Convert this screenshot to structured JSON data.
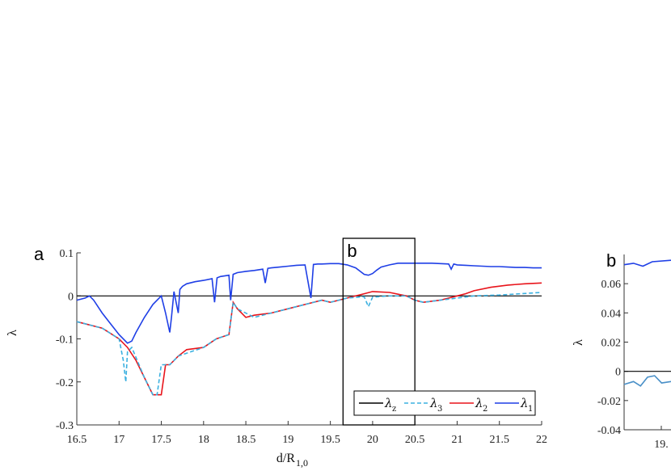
{
  "chart_data": [
    {
      "panel_label": "a",
      "type": "line",
      "xlabel": "d/R",
      "xlabel_sub": "1,0",
      "ylabel": "λ",
      "xlim": [
        16.5,
        22
      ],
      "ylim": [
        -0.3,
        0.1
      ],
      "xticks": [
        "16.5",
        "17",
        "17.5",
        "18",
        "18.5",
        "19",
        "19.5",
        "20",
        "20.5",
        "21",
        "21.5",
        "22"
      ],
      "yticks": [
        "0.1",
        "0",
        "-0.1",
        "-0.2",
        "-0.3"
      ],
      "inset_box": {
        "label": "b",
        "x": [
          19.65,
          20.5
        ]
      },
      "legend": [
        {
          "sym": "λ",
          "sub": "z",
          "color": "#000000",
          "dash": "solid"
        },
        {
          "sym": "λ",
          "sub": "3",
          "color": "#3bb0e0",
          "dash": "dashed"
        },
        {
          "sym": "λ",
          "sub": "2",
          "color": "#e8141b",
          "dash": "solid"
        },
        {
          "sym": "λ",
          "sub": "1",
          "color": "#1f3fe6",
          "dash": "solid"
        }
      ],
      "series": [
        {
          "name": "λz",
          "color": "#000000",
          "dash": "solid",
          "x": [
            16.5,
            22
          ],
          "y": [
            0,
            0
          ]
        },
        {
          "name": "λ1",
          "color": "#1f3fe6",
          "dash": "solid",
          "x": [
            16.5,
            16.6,
            16.65,
            16.7,
            16.8,
            16.9,
            17.0,
            17.1,
            17.15,
            17.2,
            17.3,
            17.4,
            17.5,
            17.55,
            17.6,
            17.62,
            17.65,
            17.7,
            17.72,
            17.75,
            17.8,
            17.9,
            18.0,
            18.1,
            18.13,
            18.16,
            18.2,
            18.3,
            18.32,
            18.35,
            18.4,
            18.5,
            18.6,
            18.7,
            18.73,
            18.76,
            18.8,
            18.9,
            19.0,
            19.1,
            19.2,
            19.27,
            19.3,
            19.35,
            19.4,
            19.5,
            19.6,
            19.7,
            19.8,
            19.9,
            19.95,
            20.0,
            20.05,
            20.1,
            20.2,
            20.3,
            20.4,
            20.5,
            20.6,
            20.7,
            20.8,
            20.9,
            20.93,
            20.96,
            21.0,
            21.1,
            21.2,
            21.3,
            21.4,
            21.5,
            21.6,
            21.7,
            21.8,
            21.9,
            22.0
          ],
          "y": [
            -0.01,
            -0.005,
            0.0,
            -0.01,
            -0.04,
            -0.065,
            -0.09,
            -0.11,
            -0.105,
            -0.085,
            -0.05,
            -0.02,
            0.0,
            -0.04,
            -0.085,
            -0.05,
            0.01,
            -0.04,
            0.015,
            0.022,
            0.028,
            0.033,
            0.036,
            0.04,
            -0.015,
            0.042,
            0.045,
            0.048,
            -0.01,
            0.05,
            0.054,
            0.057,
            0.059,
            0.062,
            0.03,
            0.064,
            0.065,
            0.067,
            0.069,
            0.071,
            0.072,
            -0.005,
            0.073,
            0.074,
            0.074,
            0.075,
            0.075,
            0.072,
            0.065,
            0.05,
            0.048,
            0.052,
            0.06,
            0.067,
            0.072,
            0.076,
            0.076,
            0.076,
            0.076,
            0.076,
            0.075,
            0.074,
            0.062,
            0.074,
            0.072,
            0.071,
            0.07,
            0.069,
            0.068,
            0.068,
            0.067,
            0.066,
            0.066,
            0.065,
            0.065
          ]
        },
        {
          "name": "λ3",
          "color": "#3bb0e0",
          "dash": "dashed",
          "x": [
            16.5,
            16.8,
            17.0,
            17.05,
            17.08,
            17.1,
            17.15,
            17.3,
            17.4,
            17.45,
            17.5,
            17.6,
            17.7,
            18.0,
            18.15,
            18.3,
            18.35,
            18.4,
            18.6,
            18.8,
            19.0,
            19.2,
            19.4,
            19.5,
            19.7,
            19.9,
            19.95,
            20.0,
            20.2,
            20.4,
            20.5,
            20.6,
            20.8,
            21.0,
            21.2,
            21.5,
            22.0
          ],
          "y": [
            -0.06,
            -0.075,
            -0.1,
            -0.15,
            -0.2,
            -0.13,
            -0.12,
            -0.19,
            -0.23,
            -0.23,
            -0.16,
            -0.16,
            -0.14,
            -0.12,
            -0.1,
            -0.09,
            -0.015,
            -0.03,
            -0.05,
            -0.04,
            -0.03,
            -0.02,
            -0.01,
            -0.015,
            -0.005,
            -0.002,
            -0.025,
            -0.003,
            0.0,
            0.0,
            -0.01,
            -0.015,
            -0.01,
            -0.005,
            0.0,
            0.002,
            0.008
          ]
        },
        {
          "name": "λ2",
          "color": "#e8141b",
          "dash": "solid",
          "x": [
            16.5,
            16.8,
            17.0,
            17.1,
            17.2,
            17.3,
            17.4,
            17.45,
            17.5,
            17.55,
            17.6,
            17.7,
            17.8,
            18.0,
            18.15,
            18.3,
            18.35,
            18.4,
            18.5,
            18.6,
            18.8,
            19.0,
            19.2,
            19.4,
            19.5,
            19.6,
            19.7,
            19.9,
            20.0,
            20.2,
            20.4,
            20.5,
            20.6,
            20.8,
            21.0,
            21.1,
            21.2,
            21.4,
            21.6,
            21.8,
            22.0
          ],
          "y": [
            -0.06,
            -0.075,
            -0.1,
            -0.12,
            -0.15,
            -0.19,
            -0.23,
            -0.23,
            -0.23,
            -0.16,
            -0.16,
            -0.14,
            -0.125,
            -0.12,
            -0.1,
            -0.09,
            -0.015,
            -0.03,
            -0.05,
            -0.045,
            -0.04,
            -0.03,
            -0.02,
            -0.01,
            -0.015,
            -0.01,
            -0.005,
            0.005,
            0.01,
            0.008,
            0.0,
            -0.01,
            -0.015,
            -0.01,
            0.0,
            0.005,
            0.012,
            0.02,
            0.025,
            0.028,
            0.03
          ]
        }
      ]
    },
    {
      "panel_label": "b",
      "type": "line",
      "xlabel": "",
      "ylabel": "λ",
      "ylim": [
        -0.04,
        0.08
      ],
      "xticks": [
        "19."
      ],
      "yticks": [
        "0.06",
        "0.04",
        "0.02",
        "0",
        "-0.02",
        "-0.04"
      ],
      "series": [
        {
          "name": "λ1",
          "color": "#1f3fe6",
          "dash": "solid",
          "x": [
            0,
            0.2,
            0.4,
            0.6,
            1.0
          ],
          "y": [
            0.073,
            0.074,
            0.072,
            0.075,
            0.076
          ]
        },
        {
          "name": "λz",
          "color": "#000000",
          "dash": "solid",
          "x": [
            0,
            1.0
          ],
          "y": [
            0,
            0
          ]
        },
        {
          "name": "λ2",
          "color": "#4a90c8",
          "dash": "solid",
          "x": [
            0,
            0.2,
            0.35,
            0.5,
            0.65,
            0.8,
            1.0
          ],
          "y": [
            -0.009,
            -0.007,
            -0.01,
            -0.004,
            -0.003,
            -0.008,
            -0.007
          ]
        }
      ]
    }
  ]
}
